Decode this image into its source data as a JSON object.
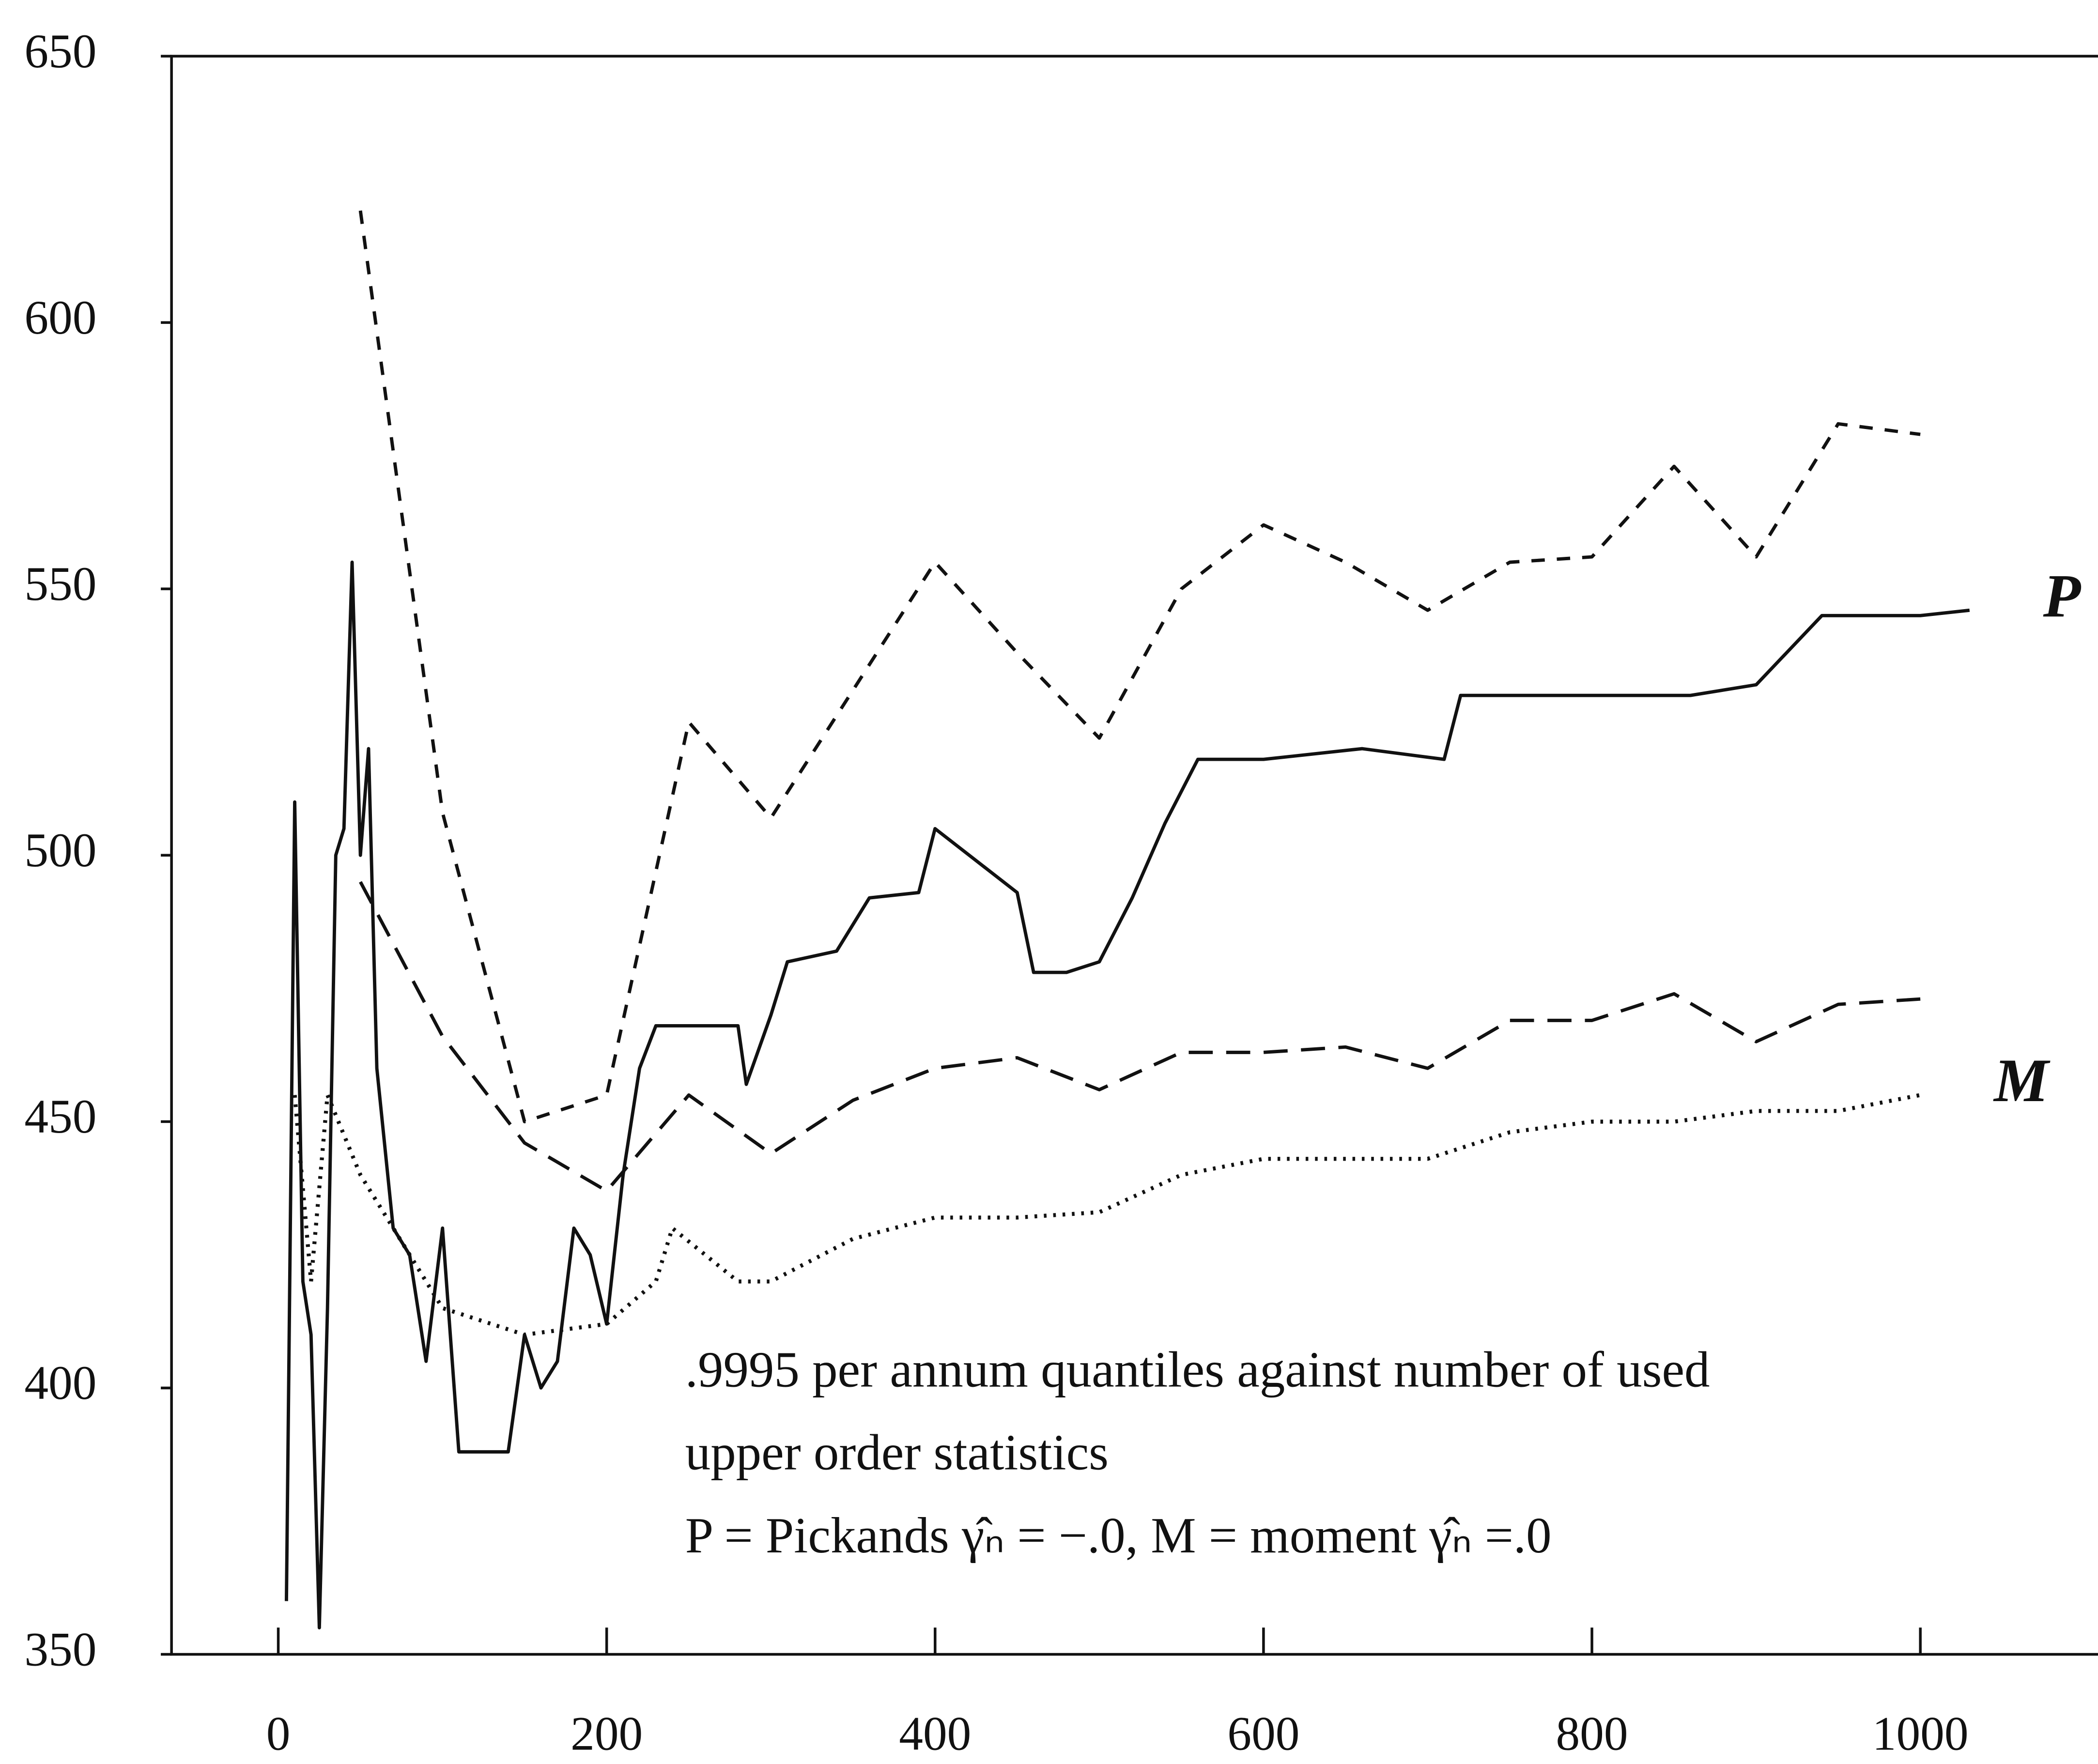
{
  "chart_data": {
    "type": "line",
    "xlim": [
      -65,
      1108
    ],
    "ylim": [
      350,
      650
    ],
    "xticks": [
      0,
      200,
      400,
      600,
      800,
      1000
    ],
    "yticks": [
      350,
      400,
      450,
      500,
      550,
      600,
      650
    ],
    "annotations": [
      ".9995 per annum quantiles against number of used",
      "upper order statistics",
      "P = Pickands γ̂ₙ = −.0, M = moment γ̂ₙ =.0"
    ],
    "series": [
      {
        "name": "P",
        "color": "#111111",
        "style": "solid",
        "x": [
          5,
          10,
          15,
          20,
          25,
          30,
          35,
          40,
          45,
          50,
          55,
          60,
          70,
          80,
          90,
          100,
          110,
          140,
          150,
          160,
          170,
          180,
          190,
          200,
          210,
          220,
          230,
          280,
          285,
          300,
          310,
          340,
          360,
          390,
          400,
          450,
          460,
          480,
          500,
          520,
          540,
          560,
          600,
          660,
          710,
          720,
          800,
          860,
          900,
          940,
          1000,
          1030
        ],
        "values": [
          360,
          510,
          420,
          410,
          355,
          415,
          500,
          505,
          555,
          500,
          520,
          460,
          430,
          425,
          405,
          430,
          388,
          388,
          410,
          400,
          405,
          430,
          425,
          412,
          440,
          460,
          468,
          468,
          457,
          470,
          480,
          482,
          492,
          493,
          505,
          493,
          478,
          478,
          480,
          492,
          506,
          518,
          518,
          520,
          518,
          530,
          530,
          530,
          532,
          545,
          545,
          546
        ]
      },
      {
        "name": "M",
        "color": "#111111",
        "style": "dotted",
        "x": [
          10,
          20,
          30,
          50,
          100,
          150,
          200,
          230,
          240,
          280,
          300,
          350,
          400,
          450,
          500,
          550,
          600,
          650,
          700,
          750,
          800,
          850,
          900,
          950,
          1000
        ],
        "values": [
          455,
          420,
          455,
          440,
          415,
          410,
          412,
          420,
          430,
          420,
          420,
          428,
          432,
          432,
          433,
          440,
          443,
          443,
          443,
          448,
          450,
          450,
          452,
          452,
          455
        ]
      },
      {
        "color": "#111111",
        "style": "short-dash",
        "x": [
          50,
          100,
          150,
          200,
          250,
          300,
          350,
          400,
          450,
          500,
          550,
          600,
          650,
          700,
          750,
          800,
          850,
          900,
          950,
          1000
        ],
        "values": [
          621,
          508,
          450,
          455,
          525,
          507,
          531,
          555,
          538,
          522,
          550,
          562,
          555,
          546,
          555,
          556,
          573,
          556,
          581,
          579
        ]
      },
      {
        "color": "#111111",
        "style": "long-dash",
        "x": [
          50,
          100,
          150,
          200,
          250,
          300,
          350,
          400,
          450,
          500,
          550,
          600,
          650,
          700,
          750,
          800,
          850,
          900,
          950,
          1000
        ],
        "values": [
          495,
          466,
          446,
          437,
          455,
          444,
          454,
          460,
          462,
          456,
          463,
          463,
          464,
          460,
          469,
          469,
          474,
          465,
          472,
          473
        ]
      }
    ]
  }
}
